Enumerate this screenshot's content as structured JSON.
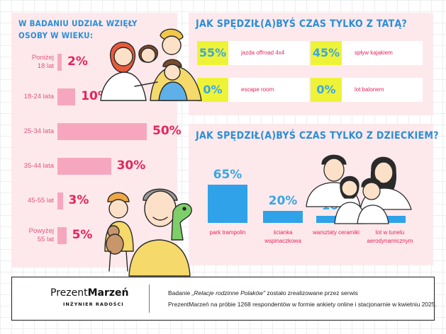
{
  "age_panel": {
    "title": "W BADANIU UDZIAŁ WZIĘŁY OSOBY W WIEKU:"
  },
  "dad_panel": {
    "title": "JAK SPĘDZIŁ(A)BYŚ CZAS TYLKO Z TATĄ?"
  },
  "child_panel": {
    "title": "JAK SPĘDZIŁ(A)BYŚ CZAS TYLKO Z DZIECKIEM?"
  },
  "chart_data": [
    {
      "type": "bar",
      "orientation": "horizontal",
      "title": "W BADANIU UDZIAŁ WZIĘŁY OSOBY W WIEKU:",
      "categories": [
        "Poniżej 18 lat",
        "18-24 lata",
        "25-34 lata",
        "35-44 lata",
        "45-55 lat",
        "Powyżej 55 lat"
      ],
      "values": [
        2,
        10,
        50,
        30,
        3,
        5
      ],
      "labels": [
        "2%",
        "10%",
        "50%",
        "30%",
        "3%",
        "5%"
      ],
      "unit": "%"
    },
    {
      "type": "table",
      "title": "JAK SPĘDZIŁ(A)BYŚ CZAS TYLKO Z TATĄ?",
      "categories": [
        "jazda offroad 4x4",
        "spływ kajakiem",
        "escape room",
        "lot balonem"
      ],
      "values": [
        55,
        45,
        0,
        0
      ],
      "labels": [
        "55%",
        "45%",
        "0%",
        "0%"
      ],
      "unit": "%"
    },
    {
      "type": "bar",
      "orientation": "vertical",
      "title": "JAK SPĘDZIŁ(A)BYŚ CZAS TYLKO Z DZIECKIEM?",
      "categories": [
        "park trampolin",
        "ścianka wspinaczkowa",
        "warsztaty ceramiki",
        "lot w tunelu aerodynamicznym"
      ],
      "values": [
        65,
        20,
        10,
        5
      ],
      "labels": [
        "65%",
        "20%",
        "10%",
        "5%"
      ],
      "unit": "%"
    }
  ],
  "footer": {
    "logo_part1": "Prezent",
    "logo_part2": "Marzeń",
    "logo_tagline": "INŻYNIER RADOŚCI",
    "line1_prefix": "Badanie ",
    "line1_title": "„Relacje rodzinne Polaków”",
    "line1_suffix": " zostało zrealizowane przez serwis",
    "line2": "PrezentMarzeń na próbie 1268 respondentów w formie ankiety online i stacjonarnie w kwietniu 2025."
  },
  "colors": {
    "panel_bg": "#fde9ec",
    "heading_blue": "#2b8ed6",
    "age_bar_pink": "#f6a7bf",
    "value_pink": "#e6245c",
    "child_bar_blue": "#2fa2ea",
    "dad_box_yellow": "#eef337"
  },
  "icons": [
    "family-illustration",
    "father-son-illustration",
    "parents-children-illustration"
  ]
}
